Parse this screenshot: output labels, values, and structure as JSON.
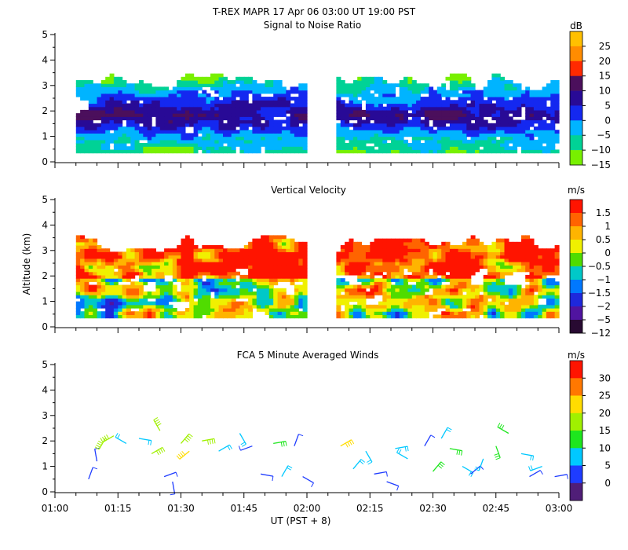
{
  "chart_data": {
    "type": "heatmap",
    "title": "T-REX  MAPR 17 Apr 06  03:00 UT  19:00  PST",
    "xlabel": "UT  (PST + 8)",
    "ylabel": "Altitude (km)",
    "x_ticks": [
      "01:00",
      "01:15",
      "01:30",
      "01:45",
      "02:00",
      "02:15",
      "02:30",
      "02:45",
      "03:00"
    ],
    "x_range_minutes": [
      60,
      180
    ],
    "ylim": [
      0,
      5
    ],
    "y_ticks": [
      "0",
      "1",
      "2",
      "3",
      "4",
      "5"
    ],
    "data_gap_minutes": [
      120,
      127
    ],
    "panels": [
      {
        "id": "snr",
        "title": "Signal to Noise Ratio",
        "type": "heatmap",
        "units": "dB",
        "colorbar_labels": [
          "25",
          "20",
          "15",
          "10",
          "5",
          "0",
          "−5",
          "−10",
          "−15"
        ],
        "colorbar_colors": [
          "#ffc000",
          "#ff8c00",
          "#ff2a00",
          "#4b0f5c",
          "#280a96",
          "#1428f0",
          "#00b4ff",
          "#00d296",
          "#78f000"
        ],
        "segments_minutes": [
          [
            65,
            120
          ],
          [
            127,
            180
          ]
        ]
      },
      {
        "id": "velocity",
        "title": "Vertical Velocity",
        "type": "heatmap",
        "units": "m/s",
        "colorbar_labels": [
          "1.5",
          "1",
          "0.5",
          "0",
          "−0.5",
          "−1",
          "−1.5",
          "−2",
          "−5",
          "−12"
        ],
        "colorbar_colors": [
          "#ff1400",
          "#ff6400",
          "#ffb400",
          "#f0f000",
          "#50dc00",
          "#00c8c8",
          "#0078ff",
          "#1e28dc",
          "#5014a0",
          "#280a32"
        ],
        "segments_minutes": [
          [
            65,
            120
          ],
          [
            127,
            180
          ]
        ]
      },
      {
        "id": "winds",
        "title": "FCA 5 Minute Averaged Winds",
        "type": "scatter",
        "units": "m/s",
        "colorbar_labels": [
          "30",
          "25",
          "20",
          "15",
          "10",
          "5",
          "0"
        ],
        "colorbar_colors": [
          "#ff1400",
          "#ff7800",
          "#ffdc00",
          "#a0f000",
          "#1ee61e",
          "#00c8ff",
          "#1e3cff",
          "#501e78"
        ],
        "wind_barbs": [
          {
            "t": 68,
            "z": 0.5,
            "speed": 6,
            "dir": 20
          },
          {
            "t": 70,
            "z": 1.2,
            "speed": 5,
            "dir": 350
          },
          {
            "t": 72,
            "z": 2.1,
            "speed": 22,
            "dir": 210
          },
          {
            "t": 74,
            "z": 2.2,
            "speed": 20,
            "dir": 240
          },
          {
            "t": 77,
            "z": 1.9,
            "speed": 10,
            "dir": 300
          },
          {
            "t": 80,
            "z": 2.1,
            "speed": 12,
            "dir": 100
          },
          {
            "t": 83,
            "z": 1.5,
            "speed": 18,
            "dir": 60
          },
          {
            "t": 85,
            "z": 2.4,
            "speed": 20,
            "dir": 330
          },
          {
            "t": 86,
            "z": 0.6,
            "speed": 4,
            "dir": 70
          },
          {
            "t": 88,
            "z": 0.4,
            "speed": 3,
            "dir": 170
          },
          {
            "t": 90,
            "z": 1.9,
            "speed": 22,
            "dir": 40
          },
          {
            "t": 92,
            "z": 1.6,
            "speed": 24,
            "dir": 230
          },
          {
            "t": 95,
            "z": 2.0,
            "speed": 18,
            "dir": 80
          },
          {
            "t": 99,
            "z": 1.6,
            "speed": 11,
            "dir": 60
          },
          {
            "t": 104,
            "z": 2.3,
            "speed": 9,
            "dir": 150
          },
          {
            "t": 107,
            "z": 1.8,
            "speed": 7,
            "dir": 250
          },
          {
            "t": 109,
            "z": 0.7,
            "speed": 6,
            "dir": 100
          },
          {
            "t": 112,
            "z": 1.9,
            "speed": 13,
            "dir": 80
          },
          {
            "t": 114,
            "z": 0.6,
            "speed": 8,
            "dir": 30
          },
          {
            "t": 117,
            "z": 1.8,
            "speed": 5,
            "dir": 20
          },
          {
            "t": 119,
            "z": 0.6,
            "speed": 3,
            "dir": 120
          },
          {
            "t": 128,
            "z": 1.8,
            "speed": 25,
            "dir": 60
          },
          {
            "t": 131,
            "z": 0.9,
            "speed": 12,
            "dir": 40
          },
          {
            "t": 134,
            "z": 1.6,
            "speed": 11,
            "dir": 150
          },
          {
            "t": 136,
            "z": 0.7,
            "speed": 5,
            "dir": 80
          },
          {
            "t": 139,
            "z": 0.4,
            "speed": 6,
            "dir": 110
          },
          {
            "t": 141,
            "z": 1.7,
            "speed": 9,
            "dir": 80
          },
          {
            "t": 144,
            "z": 1.3,
            "speed": 10,
            "dir": 300
          },
          {
            "t": 148,
            "z": 1.8,
            "speed": 5,
            "dir": 30
          },
          {
            "t": 150,
            "z": 0.8,
            "speed": 13,
            "dir": 40
          },
          {
            "t": 152,
            "z": 2.1,
            "speed": 12,
            "dir": 30
          },
          {
            "t": 154,
            "z": 1.7,
            "speed": 14,
            "dir": 100
          },
          {
            "t": 157,
            "z": 1.0,
            "speed": 10,
            "dir": 120
          },
          {
            "t": 159,
            "z": 0.7,
            "speed": 6,
            "dir": 50
          },
          {
            "t": 162,
            "z": 1.3,
            "speed": 11,
            "dir": 200
          },
          {
            "t": 165,
            "z": 1.8,
            "speed": 15,
            "dir": 160
          },
          {
            "t": 168,
            "z": 2.3,
            "speed": 16,
            "dir": 300
          },
          {
            "t": 171,
            "z": 1.5,
            "speed": 12,
            "dir": 100
          },
          {
            "t": 173,
            "z": 0.6,
            "speed": 5,
            "dir": 60
          },
          {
            "t": 176,
            "z": 1.0,
            "speed": 9,
            "dir": 250
          },
          {
            "t": 179,
            "z": 0.6,
            "speed": 7,
            "dir": 80
          }
        ]
      }
    ]
  }
}
